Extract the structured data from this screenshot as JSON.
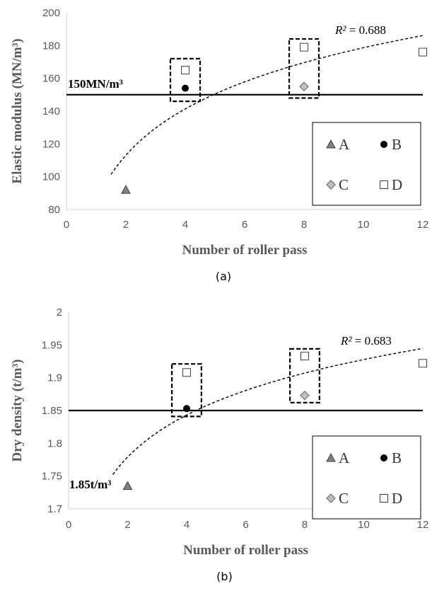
{
  "chart_data": [
    {
      "type": "scatter",
      "caption": "(a)",
      "xlabel": "Number of roller pass",
      "ylabel": "Elastic modulus (MN/m³)",
      "xlim": [
        0,
        12
      ],
      "ylim": [
        80,
        200
      ],
      "xticks": [
        0,
        2,
        4,
        6,
        8,
        10,
        12
      ],
      "yticks": [
        80,
        100,
        120,
        140,
        160,
        180,
        200
      ],
      "grid": false,
      "legend_position": "bottom-right",
      "series": [
        {
          "name": "A",
          "marker": "triangle",
          "color": "#808080",
          "points": [
            [
              2,
              92
            ]
          ]
        },
        {
          "name": "B",
          "marker": "circle",
          "color": "#000000",
          "points": [
            [
              4,
              154
            ]
          ]
        },
        {
          "name": "C",
          "marker": "diamond",
          "color": "#c0c0c0",
          "points": [
            [
              8,
              155
            ]
          ]
        },
        {
          "name": "D",
          "marker": "square",
          "color": "#ffffff",
          "points": [
            [
              4,
              165
            ],
            [
              8,
              179
            ],
            [
              12,
              176
            ]
          ]
        }
      ],
      "reference_line": {
        "value": 150,
        "label": "150MN/m³"
      },
      "trendline": {
        "type": "log",
        "x_from": 1.5,
        "x_to": 12,
        "r2_label": "R² = 0.688"
      },
      "highlight_boxes": [
        {
          "x": [
            3.5,
            4.5
          ],
          "y": [
            146,
            172
          ]
        },
        {
          "x": [
            7.5,
            8.5
          ],
          "y": [
            148,
            184
          ]
        }
      ]
    },
    {
      "type": "scatter",
      "caption": "(b)",
      "xlabel": "Number of roller pass",
      "ylabel": "Dry density (t/m³)",
      "xlim": [
        0,
        12
      ],
      "ylim": [
        1.7,
        2.0
      ],
      "xticks": [
        0,
        2,
        4,
        6,
        8,
        10,
        12
      ],
      "yticks": [
        1.7,
        1.75,
        1.8,
        1.85,
        1.9,
        1.95,
        2.0
      ],
      "ytick_labels": [
        "1.7",
        "1.75",
        "1.8",
        "1.85",
        "1.9",
        "1.95",
        "2"
      ],
      "grid": false,
      "legend_position": "bottom-right",
      "series": [
        {
          "name": "A",
          "marker": "triangle",
          "color": "#808080",
          "points": [
            [
              2,
              1.735
            ]
          ]
        },
        {
          "name": "B",
          "marker": "circle",
          "color": "#000000",
          "points": [
            [
              4,
              1.853
            ]
          ]
        },
        {
          "name": "C",
          "marker": "diamond",
          "color": "#c0c0c0",
          "points": [
            [
              8,
              1.873
            ]
          ]
        },
        {
          "name": "D",
          "marker": "square",
          "color": "#ffffff",
          "points": [
            [
              4,
              1.908
            ],
            [
              8,
              1.933
            ],
            [
              12,
              1.922
            ]
          ]
        }
      ],
      "reference_line": {
        "value": 1.85,
        "label": "1.85t/m³"
      },
      "trendline": {
        "type": "log",
        "x_from": 1.5,
        "x_to": 12,
        "r2_label": "R² = 0.683"
      },
      "highlight_boxes": [
        {
          "x": [
            3.5,
            4.5
          ],
          "y": [
            1.841,
            1.921
          ]
        },
        {
          "x": [
            7.5,
            8.5
          ],
          "y": [
            1.862,
            1.944
          ]
        }
      ]
    }
  ]
}
